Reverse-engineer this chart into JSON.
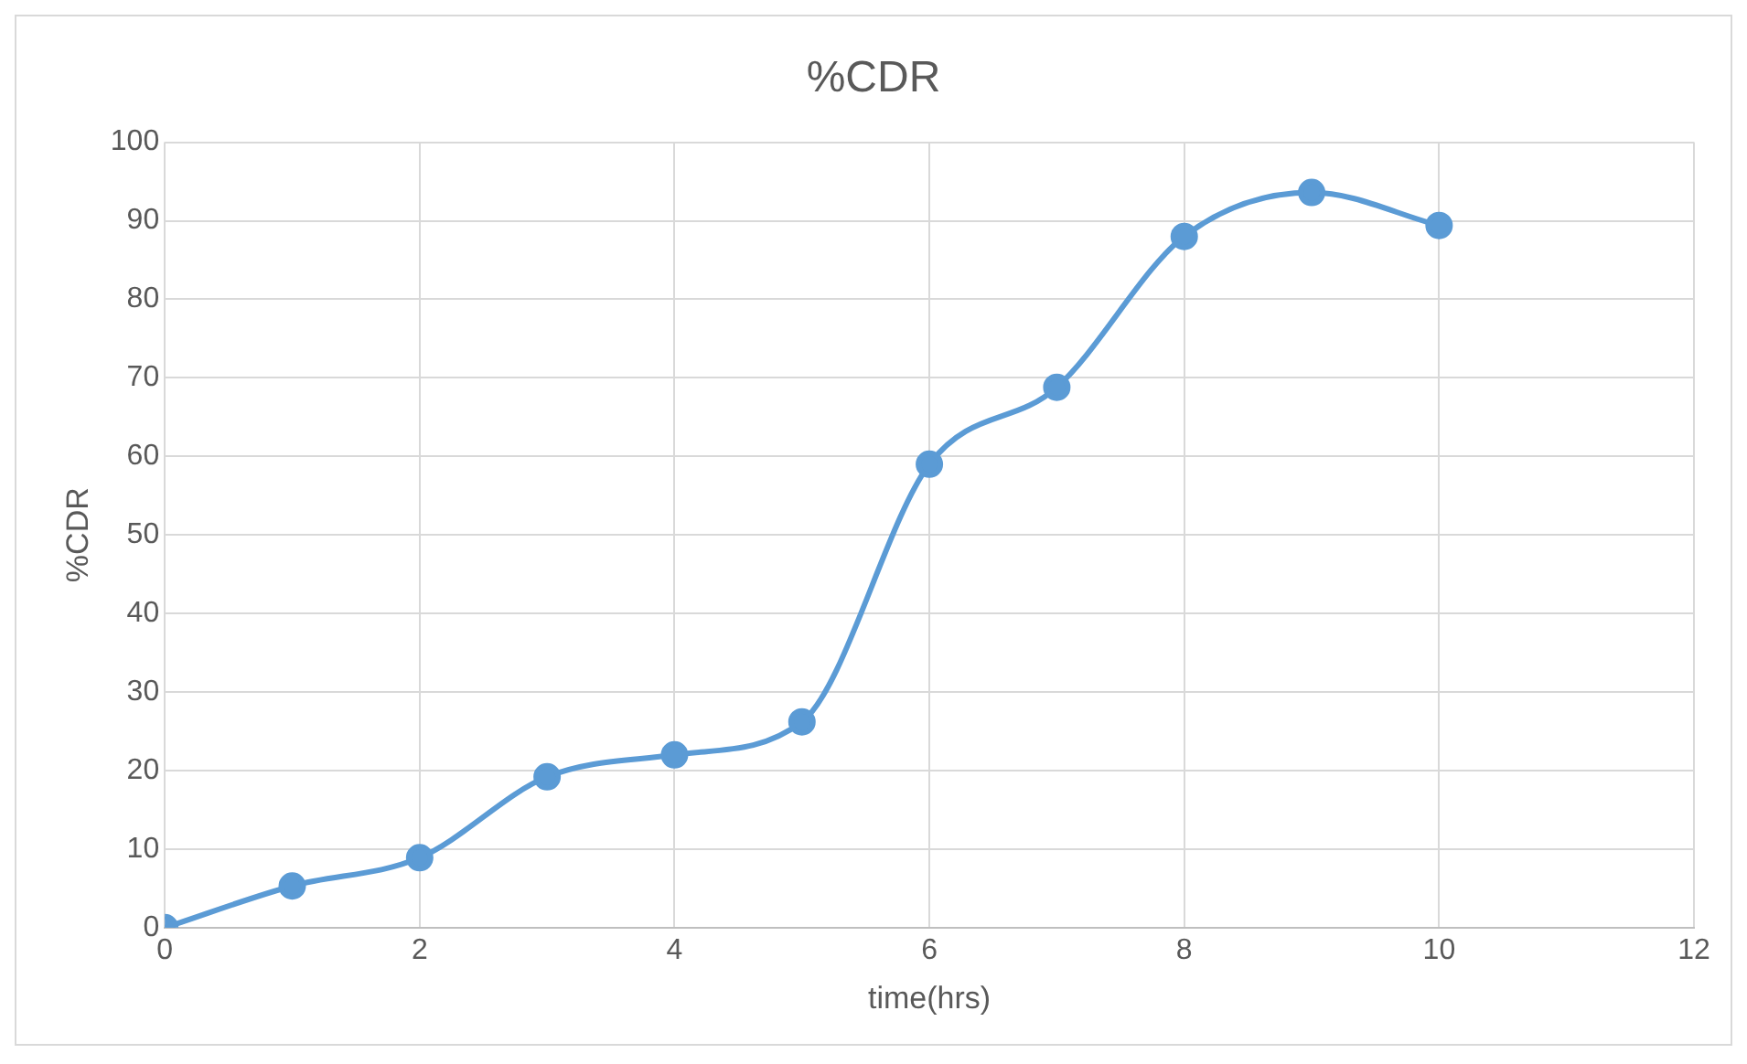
{
  "chart_data": {
    "type": "line",
    "title": "%CDR",
    "xlabel": "time(hrs)",
    "ylabel": "%CDR",
    "x": [
      0,
      1,
      2,
      3,
      4,
      5,
      6,
      7,
      8,
      9,
      10
    ],
    "series": [
      {
        "color": "#5b9bd5",
        "values": [
          0,
          5.3,
          8.9,
          19.2,
          22,
          26.2,
          59,
          68.8,
          88,
          93.6,
          89.4
        ]
      }
    ],
    "xlim": [
      0,
      12
    ],
    "xticks": [
      0,
      2,
      4,
      6,
      8,
      10,
      12
    ],
    "ylim": [
      0,
      100
    ],
    "yticks": [
      0,
      10,
      20,
      30,
      40,
      50,
      60,
      70,
      80,
      90,
      100
    ],
    "grid": true,
    "marker": "circle",
    "line_style": "solid"
  }
}
